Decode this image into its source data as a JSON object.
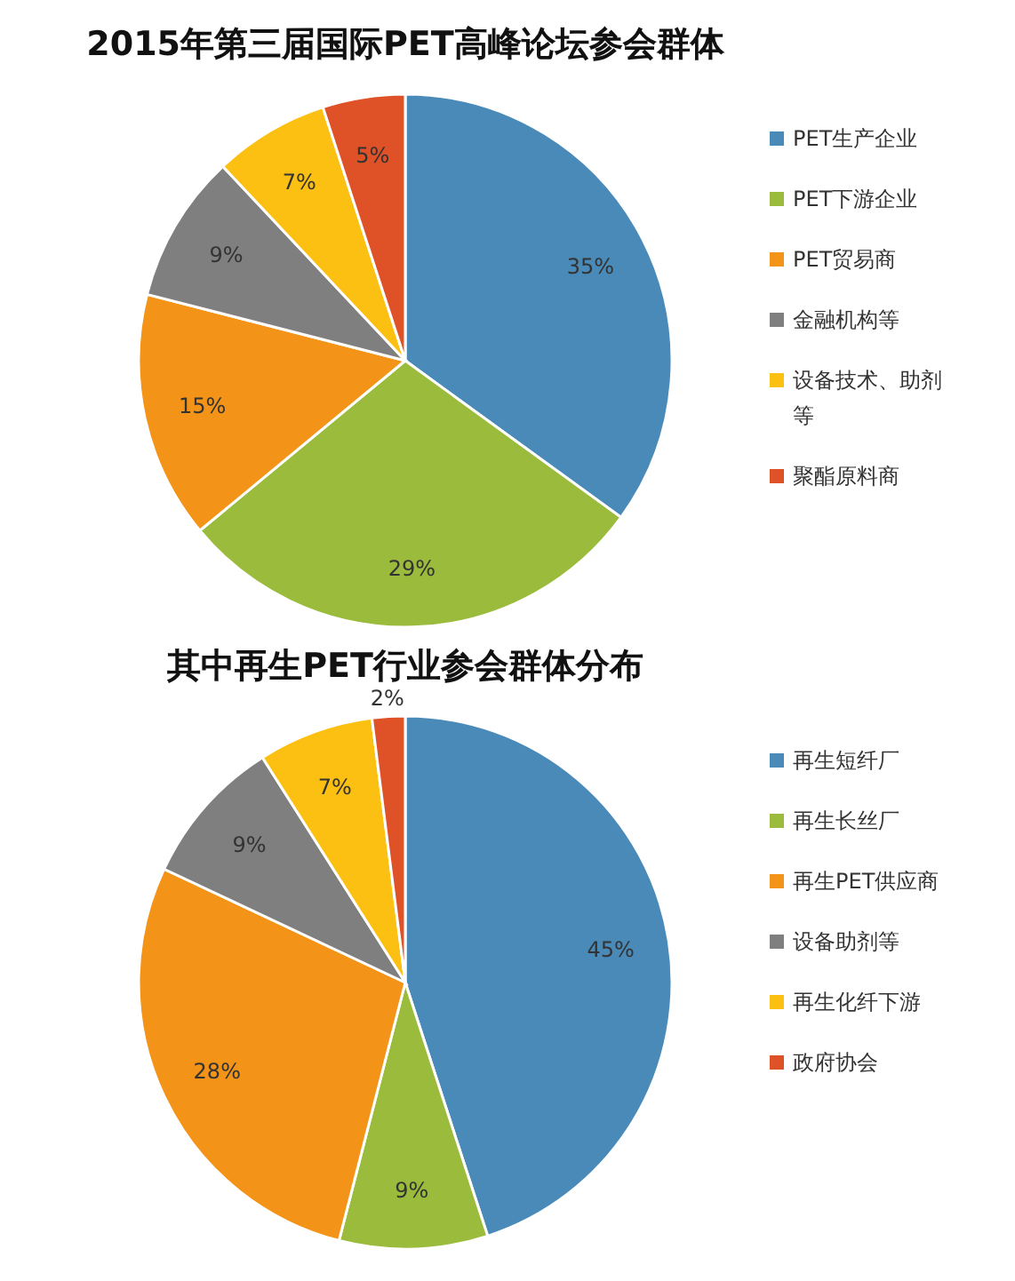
{
  "chart_data": [
    {
      "type": "pie",
      "title": "2015年第三届国际PET高峰论坛参会群体",
      "categories": [
        "PET生产企业",
        "PET下游企业",
        "PET贸易商",
        "金融机构等",
        "设备技术、助剂等",
        "聚酯原料商"
      ],
      "values": [
        35,
        29,
        15,
        9,
        7,
        5
      ],
      "colors": [
        "#4a8ab8",
        "#9bbb3c",
        "#f39419",
        "#7f7f7f",
        "#fcc012",
        "#df5228"
      ],
      "value_labels": [
        "35%",
        "29%",
        "15%",
        "9%",
        "7%",
        "5%"
      ],
      "legend": "right"
    },
    {
      "type": "pie",
      "title": "其中再生PET行业参会群体分布",
      "categories": [
        "再生短纤厂",
        "再生长丝厂",
        "再生PET供应商",
        "设备助剂等",
        "再生化纤下游",
        "政府协会"
      ],
      "values": [
        45,
        9,
        28,
        9,
        7,
        2
      ],
      "colors": [
        "#4a8ab8",
        "#9bbb3c",
        "#f39419",
        "#7f7f7f",
        "#fcc012",
        "#df5228"
      ],
      "value_labels": [
        "45%",
        "9%",
        "28%",
        "9%",
        "7%",
        "2%"
      ],
      "legend": "right"
    }
  ]
}
